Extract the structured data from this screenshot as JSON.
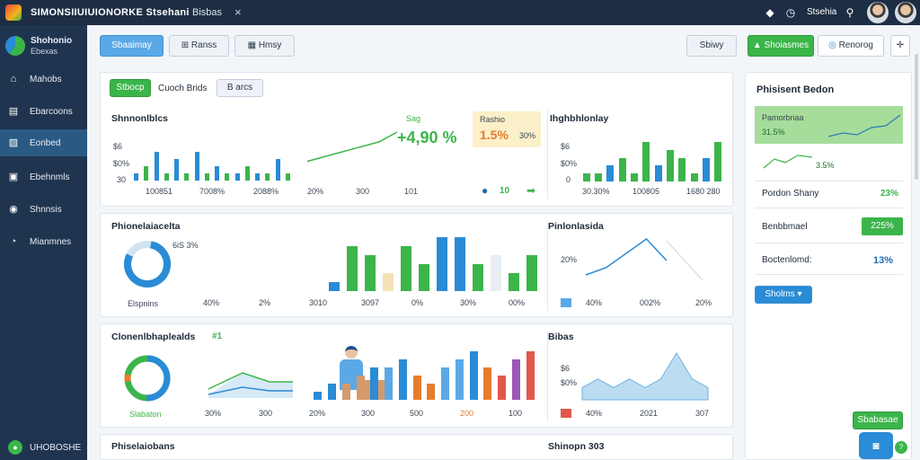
{
  "topbar": {
    "title": "SIMONSIIUIUIONORKE Stsehani",
    "tab": "Bisbas",
    "close": "×",
    "user": "Stsehia"
  },
  "sidebar": {
    "brand_name": "Shohonio",
    "brand_sub": "Ebexas",
    "items": [
      {
        "label": "Mahobs",
        "icon": "home-icon"
      },
      {
        "label": "Ebarcoons",
        "icon": "document-icon"
      },
      {
        "label": "Eonbed",
        "icon": "chart-icon"
      },
      {
        "label": "Ebehnmls",
        "icon": "list-icon"
      },
      {
        "label": "Shnnsis",
        "icon": "settings-icon"
      },
      {
        "label": "Mianmnes",
        "icon": "alert-icon"
      }
    ],
    "footer": "UHOBOSHE"
  },
  "toolbar": {
    "left": [
      "Sbaaimay",
      "Ranss",
      "Hmsy"
    ],
    "right": [
      "Sbiwy",
      "Shoiasmes",
      "Renorog"
    ]
  },
  "row1": {
    "chip_active": "Stbocp",
    "chip_text": "Cuoch Brids",
    "chip_btn": "B arcs",
    "left_title": "Shnnonlblcs",
    "left_xticks": [
      "100851",
      "7008%",
      "2088%"
    ],
    "left_yticks": [
      "$6",
      "$0%",
      "30"
    ],
    "kpi_small": "Sag",
    "kpi_main": "+4,90 %",
    "kpi_ticks": [
      "20%",
      "300",
      "101"
    ],
    "box_label": "Rashio",
    "box_val": "1.5%",
    "box_sub": "30%",
    "foot_val": "10",
    "right_title": "Ihghbhlonlay",
    "right_yticks": [
      "$6",
      "$0%",
      "0"
    ],
    "right_xticks": [
      "30.30%",
      "100805",
      "1680 280"
    ]
  },
  "row2": {
    "left_title": "Phionelaiacelta",
    "donut_label": "6iS 3%",
    "donut_foot": "Elspnins",
    "xticks": [
      "40%",
      "2%",
      "3010",
      "3097",
      "0%",
      "30%",
      "00%"
    ],
    "right_title": "Pinlonlasida",
    "right_y": "20%",
    "right_xticks": [
      "40%",
      "002%",
      "20%"
    ]
  },
  "row3": {
    "left_title": "Clonenlbhaplealds",
    "left_badge": "#1",
    "donut_foot": "Slabaton",
    "xticks": [
      "30%",
      "300",
      "20%",
      "300",
      "500",
      "200",
      "100"
    ],
    "right_title": "Bibas",
    "right_yticks": [
      "$6",
      "$0%"
    ],
    "right_xticks": [
      "40%",
      "2021",
      "307"
    ]
  },
  "row4": {
    "left_title": "Phiselaiobans",
    "right_title": "Shinopn 303"
  },
  "right_panel": {
    "title": "Phisisent Bedon",
    "green_title": "Pamorbnaa",
    "green_val": "31.5%",
    "green_sub": "3.5%",
    "rows": [
      {
        "label": "Pordon Shany",
        "value": "23%"
      },
      {
        "label": "Benbbmael",
        "value": "225%"
      },
      {
        "label": "Boctenlomd:",
        "value": "13%"
      }
    ],
    "dropdown": "Sholms",
    "float_btn": "Sbabasae"
  },
  "colors": {
    "green": "#3bb54a",
    "blue": "#2a8bd6",
    "navy": "#1c2d44"
  },
  "chart_data": [
    {
      "type": "bar",
      "title": "Shnnonlblcs",
      "series": [
        {
          "values": [
            1,
            2,
            4,
            1,
            3,
            1,
            4,
            1,
            2,
            1,
            1,
            2,
            1,
            1,
            3,
            1
          ]
        }
      ],
      "ylim": [
        0,
        5
      ]
    },
    {
      "type": "line",
      "title": "",
      "values": [
        1,
        2,
        3,
        4,
        5,
        7
      ]
    },
    {
      "type": "bar",
      "title": "Ihghbhlonlay",
      "series": [
        {
          "values": [
            1,
            1,
            2,
            3,
            1,
            5,
            2,
            4,
            3,
            1,
            3,
            5
          ]
        }
      ],
      "ylim": [
        0,
        6
      ]
    },
    {
      "type": "bar",
      "title": "Phionelaiacelta",
      "values": [
        1,
        5,
        4,
        2,
        5,
        3,
        6,
        6,
        3,
        4,
        2,
        4
      ]
    },
    {
      "type": "line",
      "title": "Pinlonlasida",
      "values": [
        1,
        2,
        4,
        6,
        3
      ]
    },
    {
      "type": "bar",
      "title": "Clonenlbhaplealds",
      "values": [
        1,
        2,
        2,
        3,
        4,
        4,
        5,
        3,
        2,
        4,
        5,
        6,
        4,
        3,
        5,
        6
      ]
    },
    {
      "type": "area",
      "title": "Bibas",
      "values": [
        1,
        2,
        1,
        2,
        1,
        2,
        5,
        2,
        1
      ]
    }
  ]
}
